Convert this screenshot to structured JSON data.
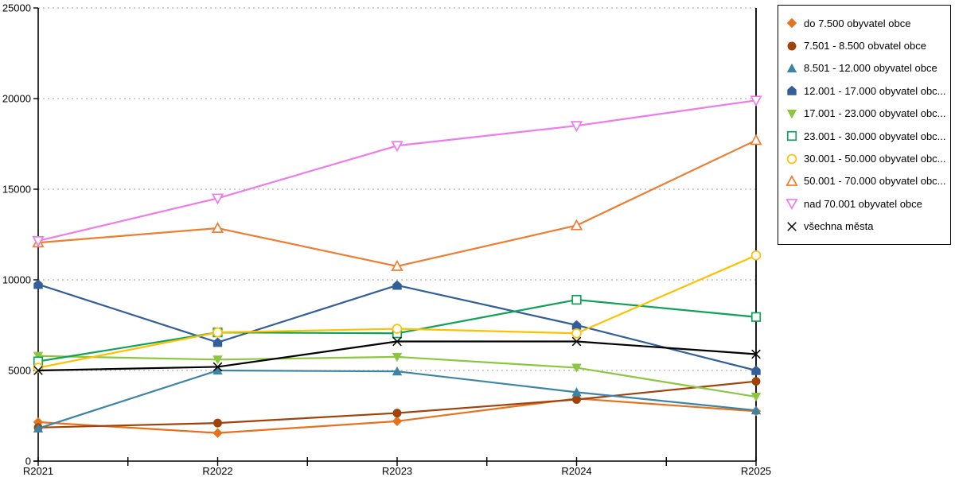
{
  "chart_data": {
    "type": "line",
    "title": "",
    "xlabel": "",
    "ylabel": "",
    "categories": [
      "R2021",
      "R2022",
      "R2023",
      "R2024",
      "R2025"
    ],
    "ylim": [
      0,
      25000
    ],
    "yticks": [
      0,
      5000,
      10000,
      15000,
      20000,
      25000
    ],
    "grid": "horizontal-dotted",
    "grid_color": "#b3b3b3",
    "axis_color": "#000000",
    "legend_position": "right",
    "series": [
      {
        "label": "do 7.500 obyvatel obce",
        "marker": "diamond",
        "marker_style": "filled",
        "color": "#E8721C",
        "values": [
          2150,
          1550,
          2200,
          3450,
          2750
        ]
      },
      {
        "label": "7.501 - 8.500 obvatel obce",
        "marker": "circle",
        "marker_style": "filled",
        "color": "#A0430A",
        "values": [
          1850,
          2100,
          2650,
          3400,
          4400
        ]
      },
      {
        "label": "8.501 - 12.000 obyvatel obce",
        "marker": "triangle-up",
        "marker_style": "filled",
        "color": "#3B84A5",
        "values": [
          1800,
          5000,
          4950,
          3800,
          2800
        ]
      },
      {
        "label": "12.001 - 17.000 obyvatel obc...",
        "marker": "pentagon",
        "marker_style": "filled",
        "color": "#325F98",
        "values": [
          9750,
          6550,
          9700,
          7500,
          5000
        ]
      },
      {
        "label": "17.001 - 23.000 obyvatel obc...",
        "marker": "triangle-down",
        "marker_style": "filled",
        "color": "#8CC63F",
        "values": [
          5800,
          5600,
          5750,
          5150,
          3550
        ]
      },
      {
        "label": "23.001 - 30.000 obyvatel obc...",
        "marker": "square",
        "marker_style": "open",
        "color": "#0FA158",
        "values": [
          5500,
          7100,
          7050,
          8900,
          7950
        ]
      },
      {
        "label": "30.001 - 50.000 obyvatel obc...",
        "marker": "circle",
        "marker_style": "open",
        "color": "#FFC000",
        "values": [
          5150,
          7100,
          7300,
          7050,
          11350
        ]
      },
      {
        "label": "50.001 - 70.000 obyvatel obc...",
        "marker": "triangle-up",
        "marker_style": "open",
        "color": "#ED7D31",
        "values": [
          12050,
          12850,
          10750,
          13000,
          17700
        ]
      },
      {
        "label": "nad 70.001 obyvatel obce",
        "marker": "triangle-down",
        "marker_style": "open",
        "color": "#EF7BEA",
        "values": [
          12150,
          14500,
          17400,
          18500,
          19900
        ]
      },
      {
        "label": "všechna města",
        "marker": "x",
        "marker_style": "stroke",
        "color": "#000000",
        "values": [
          5000,
          5200,
          6600,
          6600,
          5900
        ]
      }
    ]
  }
}
